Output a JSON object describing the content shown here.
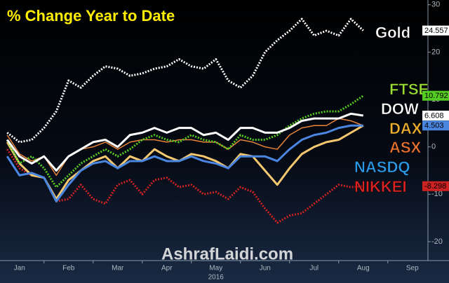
{
  "chart_data": {
    "type": "line",
    "title": "% Change Year to Date",
    "watermark": "AshrafLaidi.com",
    "year": "2016",
    "categories": [
      null,
      null,
      "Jan",
      null,
      null,
      null,
      "Feb",
      null,
      null,
      null,
      "Mar",
      null,
      null,
      null,
      "Apr",
      null,
      null,
      null,
      "May",
      null,
      null,
      null,
      "Jun",
      null,
      null,
      null,
      "Jul",
      null,
      null,
      null,
      "Aug",
      null,
      null,
      null,
      "Sep",
      null
    ],
    "ylim": [
      -24,
      31
    ],
    "yticks": [
      30,
      20,
      10,
      0,
      -10,
      -20
    ],
    "yaxis_side": "right",
    "grid": false,
    "series": [
      {
        "name": "Gold",
        "color": "#ffffff",
        "label_color": "#ffffff",
        "dash": "dotted",
        "last_value_tag": true,
        "values": [
          null,
          3,
          1,
          1.5,
          4,
          7.5,
          14,
          12.5,
          15,
          17,
          16.5,
          15,
          15.5,
          16.5,
          17,
          18.5,
          17,
          16.5,
          18.5,
          14,
          12.5,
          15,
          20,
          22.5,
          24.5,
          27,
          23.5,
          24.5,
          23.5,
          27,
          24.557,
          null,
          null,
          null,
          null,
          null
        ]
      },
      {
        "name": "FTSE",
        "color": "#55cc22",
        "label_color": "#99dd33",
        "dash": "dotted",
        "last_value_tag": true,
        "values": [
          null,
          1.5,
          -3.5,
          -2,
          -4.5,
          -8.5,
          -6,
          -3.5,
          -2,
          -0.5,
          -2,
          -0.5,
          1.5,
          2.5,
          1.5,
          1,
          2.5,
          1.5,
          1,
          -0.5,
          2.5,
          1.5,
          1.5,
          2.5,
          4.5,
          6,
          7,
          7.5,
          7.5,
          9,
          10.792,
          null,
          null,
          null,
          null,
          null
        ]
      },
      {
        "name": "DOW",
        "color": "#ffffff",
        "label_color": "#ffffff",
        "dash": "solid",
        "last_value_tag": true,
        "values": [
          null,
          1.5,
          -2,
          -3.5,
          -2,
          -5,
          -2,
          -0.5,
          1,
          1.5,
          0,
          2.5,
          3,
          4,
          3,
          4,
          4,
          2.5,
          3,
          1.5,
          4,
          4,
          3,
          3,
          4,
          5.5,
          6,
          6,
          6,
          7,
          6.608,
          null,
          null,
          null,
          null,
          null
        ]
      },
      {
        "name": "DAX",
        "color": "#f5c870",
        "label_color": "#f0b030",
        "dash": "solid",
        "last_value_tag": false,
        "values": [
          null,
          1,
          -3.5,
          -6,
          -6.5,
          -11,
          -7,
          -5,
          -3,
          -2,
          -4.5,
          -2,
          -3,
          -0.5,
          -2,
          -3,
          -1.5,
          -2,
          -3,
          -4.5,
          -1.5,
          -2,
          -5,
          -8,
          -4.5,
          -1.5,
          0,
          1,
          1.5,
          3,
          4.5,
          null,
          null,
          null,
          null,
          null
        ]
      },
      {
        "name": "ASX",
        "color": "#e8843a",
        "label_color": "#e87030",
        "dash": "thin",
        "last_value_tag": false,
        "values": [
          null,
          2.5,
          -1.5,
          -3,
          -2,
          -6,
          -2,
          -0.5,
          0,
          1,
          -0.5,
          1,
          1.5,
          1.5,
          1,
          1.5,
          1.5,
          1,
          1,
          -0.5,
          1.5,
          1,
          0,
          -0.5,
          2.5,
          4,
          4.5,
          4.5,
          6,
          5.5,
          4.5,
          null,
          null,
          null,
          null,
          null
        ]
      },
      {
        "name": "NASDQ",
        "color": "#4a86e0",
        "label_color": "#2a9ae8",
        "dash": "solid",
        "last_value_tag": true,
        "values": [
          null,
          -2,
          -6,
          -5.5,
          -6.5,
          -11.5,
          -8,
          -5,
          -3.5,
          -3,
          -4.5,
          -3,
          -3,
          -2,
          -3,
          -3,
          -2,
          -3,
          -3.5,
          -4.5,
          -2,
          -2,
          -2,
          -3,
          -0.5,
          1.5,
          2.5,
          3,
          4,
          4.5,
          4.503,
          null,
          null,
          null,
          null,
          null
        ]
      },
      {
        "name": "NIKKEI",
        "color": "#cc2222",
        "label_color": "#dd2222",
        "dash": "dotted",
        "last_value_tag": true,
        "values": [
          null,
          -0.5,
          -4.5,
          -6,
          -6.5,
          -11.5,
          -11,
          -8,
          -11,
          -12,
          -8,
          -7,
          -10,
          -7,
          -6.5,
          -8.5,
          -8,
          -10,
          -9.5,
          -11,
          -8.5,
          -9.5,
          -13,
          -16,
          -14.5,
          -14,
          -12,
          -10,
          -8,
          -8.5,
          -8.298,
          null,
          null,
          null,
          null,
          null
        ]
      }
    ]
  }
}
